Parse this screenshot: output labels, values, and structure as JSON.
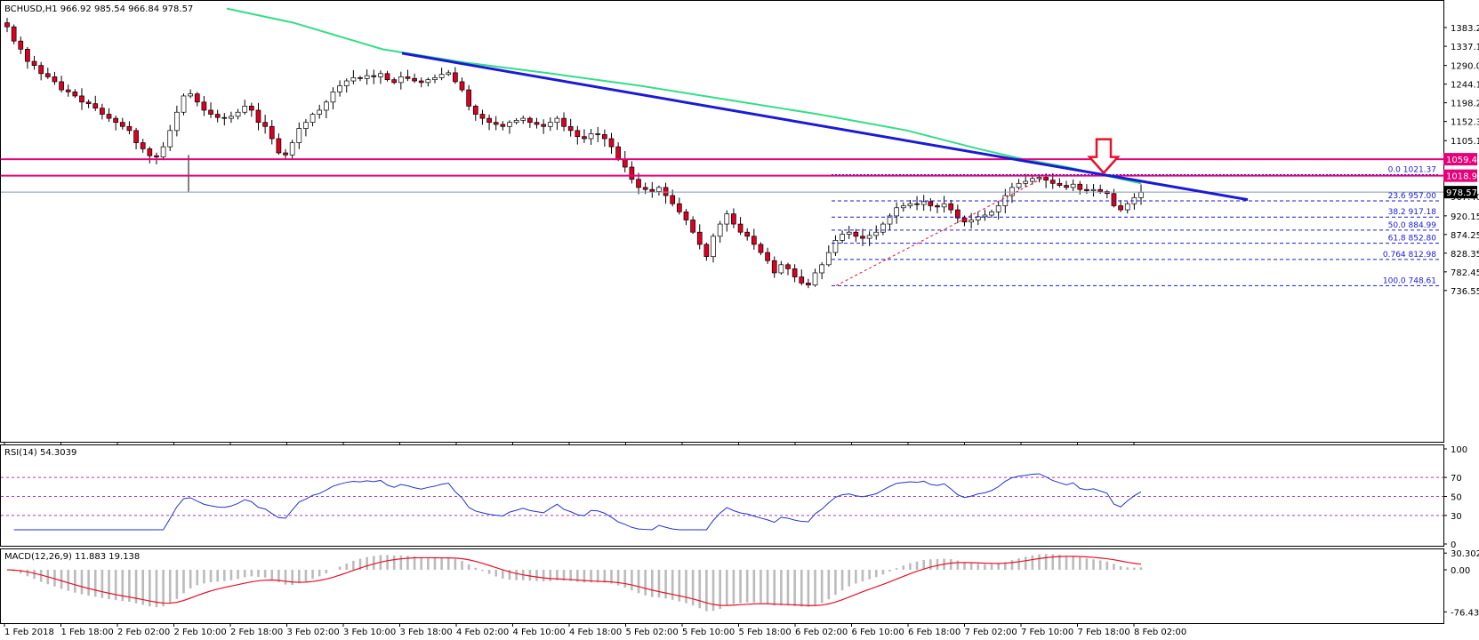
{
  "window": {
    "symbol_info": "BCHUSD,H1  966.92 985.54 966.84 978.57"
  },
  "colors": {
    "bull": "#ffffff",
    "bear": "#dd0022",
    "wick": "#000000",
    "ma": "#33dd88",
    "trendline": "#1a1ad6",
    "support": "#e8007a",
    "fib": "#1a1ad6",
    "fib_diag": "#e8102a",
    "arrow": "#e8102a",
    "rsi_line": "#2233cc",
    "rsi_levels": "#bb33bb",
    "macd_hist": "#bbbbbb",
    "macd_signal": "#e8102a",
    "price_line": "#8899aa",
    "axis": "#000000"
  },
  "chart_data": [
    {
      "type": "candlestick",
      "title": "BCHUSD,H1",
      "ohlc_header": "966.92 985.54 966.84 978.57",
      "y_ticks": [
        "1383.20",
        "1337.10",
        "1290.05",
        "1244.15",
        "1198.25",
        "1152.35",
        "1105.10",
        "1059.48",
        "1018.96",
        "967.40",
        "920.15",
        "874.25",
        "828.35",
        "782.45",
        "736.55"
      ],
      "x_ticks": [
        "1 Feb 2018",
        "1 Feb 18:00",
        "2 Feb 02:00",
        "2 Feb 10:00",
        "2 Feb 18:00",
        "3 Feb 02:00",
        "3 Feb 10:00",
        "3 Feb 18:00",
        "4 Feb 02:00",
        "4 Feb 10:00",
        "4 Feb 18:00",
        "5 Feb 02:00",
        "5 Feb 10:00",
        "5 Feb 18:00",
        "6 Feb 02:00",
        "6 Feb 10:00",
        "6 Feb 18:00",
        "7 Feb 02:00",
        "7 Feb 10:00",
        "7 Feb 18:00",
        "8 Feb 02:00"
      ],
      "ylim": [
        730,
        1430
      ],
      "current_price": "978.57",
      "horizontal_levels": [
        {
          "value": 1059.48,
          "label": "1059.48"
        },
        {
          "value": 1018.96,
          "label": "1018.96"
        }
      ],
      "fibonacci": [
        {
          "label": "0.0  1021.37",
          "value": 1021.37
        },
        {
          "label": "23.6  957.00",
          "value": 957.0
        },
        {
          "label": "38.2  917.18",
          "value": 917.18
        },
        {
          "label": "50.0  884.99",
          "value": 884.99
        },
        {
          "label": "61.8  852.80",
          "value": 852.8
        },
        {
          "label": "0.764  812.98",
          "value": 812.98
        },
        {
          "label": "100.0  748.61",
          "value": 748.61
        }
      ],
      "key_prices": [
        1385,
        1350,
        1330,
        1300,
        1290,
        1270,
        1262,
        1250,
        1230,
        1225,
        1215,
        1200,
        1196,
        1185,
        1170,
        1160,
        1150,
        1140,
        1130,
        1100,
        1085,
        1068,
        1065,
        1090,
        1130,
        1175,
        1215,
        1220,
        1200,
        1180,
        1170,
        1162,
        1160,
        1165,
        1175,
        1190,
        1180,
        1150,
        1140,
        1110,
        1075,
        1070,
        1100,
        1135,
        1150,
        1170,
        1180,
        1200,
        1225,
        1240,
        1252,
        1260,
        1258,
        1265,
        1262,
        1270,
        1255,
        1248,
        1262,
        1258,
        1252,
        1248,
        1255,
        1260,
        1268,
        1272,
        1250,
        1230,
        1190,
        1170,
        1160,
        1150,
        1145,
        1140,
        1150,
        1155,
        1160,
        1150,
        1145,
        1140,
        1150,
        1160,
        1140,
        1130,
        1115,
        1110,
        1122,
        1120,
        1110,
        1090,
        1060,
        1040,
        1010,
        990,
        985,
        980,
        990,
        970,
        950,
        930,
        910,
        880,
        850,
        820,
        870,
        900,
        925,
        900,
        880,
        870,
        850,
        830,
        810,
        780,
        800,
        790,
        770,
        755,
        750,
        780,
        800,
        830,
        860,
        875,
        880,
        870,
        865,
        872,
        880,
        900,
        920,
        940,
        945,
        950,
        948,
        955,
        945,
        942,
        950,
        935,
        915,
        905,
        910,
        918,
        922,
        930,
        945,
        970,
        990,
        1000,
        1005,
        1012,
        1015,
        1008,
        1000,
        995,
        990,
        998,
        985,
        982,
        985,
        980,
        975,
        945,
        935,
        950,
        965,
        978
      ]
    },
    {
      "type": "line",
      "title": "RSI(14) 54.3039",
      "y_ticks": [
        "100",
        "70",
        "50",
        "30",
        "0"
      ],
      "levels": [
        70,
        50,
        30
      ],
      "ylim": [
        0,
        100
      ]
    },
    {
      "type": "bar",
      "title": "MACD(12,26,9) 11.883 19.138",
      "y_ticks": [
        "30.302",
        "0.00",
        "-76.436"
      ],
      "ylim": [
        -76.436,
        30.302
      ]
    }
  ]
}
